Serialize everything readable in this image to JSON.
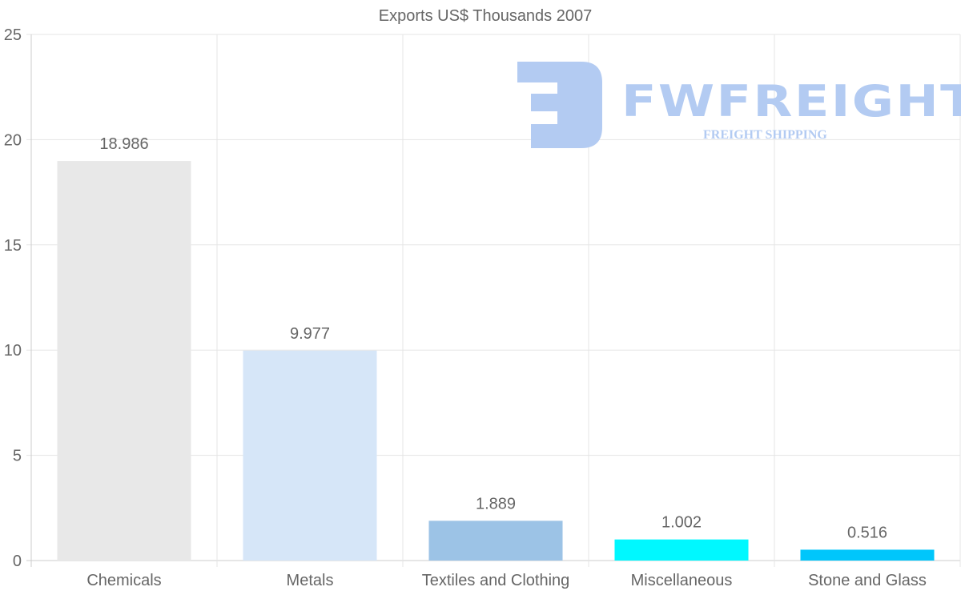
{
  "chart_data": {
    "type": "bar",
    "title": "Exports US$ Thousands 2007",
    "categories": [
      "Chemicals",
      "Metals",
      "Textiles and Clothing",
      "Miscellaneous",
      "Stone and Glass"
    ],
    "values": [
      18.986,
      9.977,
      1.889,
      1.002,
      0.516
    ],
    "value_labels": [
      "18.986",
      "9.977",
      "1.889",
      "1.002",
      "0.516"
    ],
    "colors": [
      "#e8e8e8",
      "#d6e6f8",
      "#9cc3e6",
      "#00f8ff",
      "#00c6fb"
    ],
    "ylim": [
      0,
      25
    ],
    "yticks": [
      0,
      5,
      10,
      15,
      20,
      25
    ],
    "xlabel": "",
    "ylabel": "",
    "grid": true,
    "legend": "none"
  },
  "watermark": {
    "brand": "FWFREIGHT",
    "tagline": "FREIGHT SHIPPING"
  }
}
